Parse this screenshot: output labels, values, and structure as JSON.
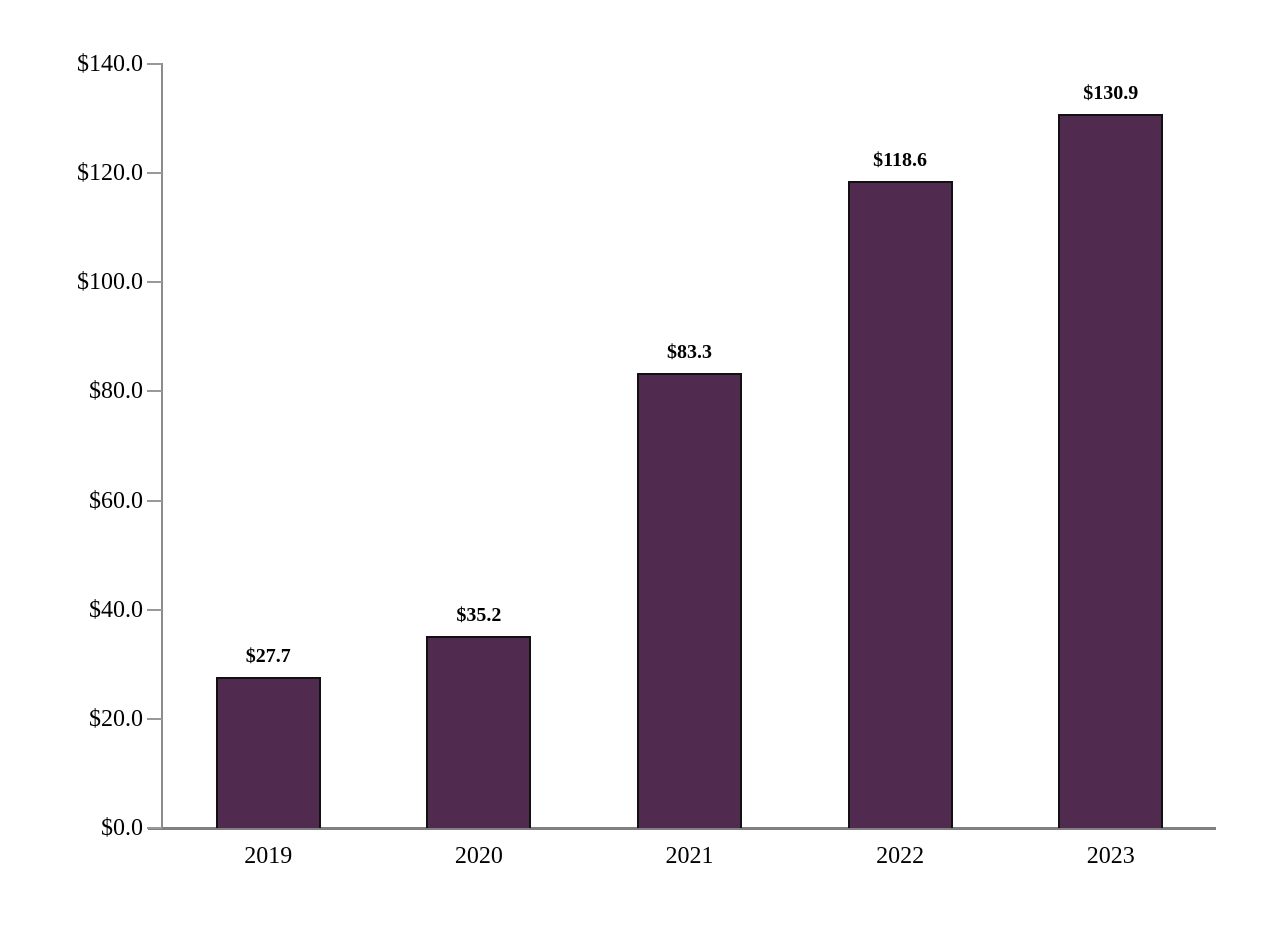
{
  "chart_data": {
    "type": "bar",
    "title": "",
    "xlabel": "",
    "ylabel": "",
    "categories": [
      "2019",
      "2020",
      "2021",
      "2022",
      "2023"
    ],
    "values": [
      27.7,
      35.2,
      83.3,
      118.6,
      130.9
    ],
    "value_labels": [
      "$27.7",
      "$35.2",
      "$83.3",
      "$118.6",
      "$130.9"
    ],
    "ylim": [
      0,
      140
    ],
    "yticks": [
      {
        "value": 0,
        "label": "$0.0"
      },
      {
        "value": 20,
        "label": "$20.0"
      },
      {
        "value": 40,
        "label": "$40.0"
      },
      {
        "value": 60,
        "label": "$60.0"
      },
      {
        "value": 80,
        "label": "$80.0"
      },
      {
        "value": 100,
        "label": "$100.0"
      },
      {
        "value": 120,
        "label": "$120.0"
      },
      {
        "value": 140,
        "label": "$140.0"
      }
    ],
    "grid": false,
    "legend": null,
    "colors": {
      "bar_fill": "#512B4F",
      "bar_border": "#111111",
      "y_axis_line": "#8c8c8c",
      "x_axis_line": "#808080",
      "tick_mark": "#999999",
      "text": "#000000",
      "background": "#ffffff"
    }
  }
}
